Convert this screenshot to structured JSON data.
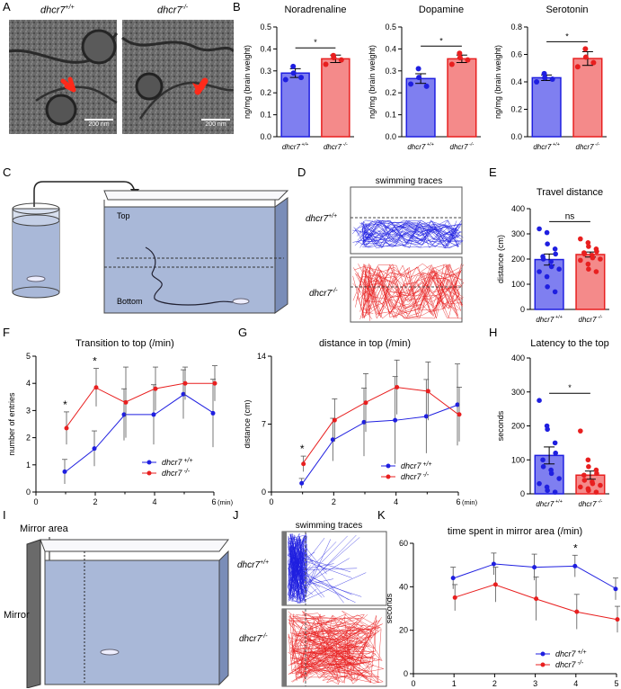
{
  "panels": [
    "A",
    "B",
    "C",
    "D",
    "E",
    "F",
    "G",
    "H",
    "I",
    "J",
    "K"
  ],
  "genotypes": {
    "wt": "dhcr7",
    "wt_sup": "+/+",
    "ko": "dhcr7",
    "ko_sup": "-/-"
  },
  "colors": {
    "wt": "#1f1fe0",
    "ko": "#e81f1f",
    "wt_fill": "#7f7ff0",
    "ko_fill": "#f48a8a"
  },
  "panel_A": {
    "scale_left": "200 nm",
    "scale_right": "200 nm"
  },
  "panel_C": {
    "top": "Top",
    "bottom": "Bottom"
  },
  "panel_D": {
    "title": "swimming traces"
  },
  "panel_I": {
    "mirror_area": "Mirror area",
    "mirror": "Mirror"
  },
  "panel_J": {
    "title": "swimming traces"
  },
  "chart_data": [
    {
      "panel": "B",
      "type": "bar",
      "title": "Noradrenaline",
      "ylabel": "ng/mg (brain weight)",
      "ylim": [
        0,
        0.5
      ],
      "yticks": [
        0.0,
        0.1,
        0.2,
        0.3,
        0.4,
        0.5
      ],
      "categories": [
        "dhcr7 +/+",
        "dhcr7 -/-"
      ],
      "values": [
        0.29,
        0.355
      ],
      "errors": [
        0.02,
        0.017
      ],
      "points": [
        [
          0.26,
          0.32,
          0.29,
          0.27
        ],
        [
          0.33,
          0.37,
          0.36,
          0.35
        ]
      ],
      "significance": "*"
    },
    {
      "panel": "B",
      "type": "bar",
      "title": "Dopamine",
      "ylabel": "ng/mg (brain weight)",
      "ylim": [
        0,
        0.5
      ],
      "yticks": [
        0.0,
        0.1,
        0.2,
        0.3,
        0.4,
        0.5
      ],
      "categories": [
        "dhcr7 +/+",
        "dhcr7 -/-"
      ],
      "values": [
        0.265,
        0.355
      ],
      "errors": [
        0.022,
        0.017
      ],
      "points": [
        [
          0.24,
          0.31,
          0.27,
          0.23
        ],
        [
          0.33,
          0.38,
          0.36,
          0.35
        ]
      ],
      "significance": "*"
    },
    {
      "panel": "B",
      "type": "bar",
      "title": "Serotonin",
      "ylabel": "ng/mg (brain weight)",
      "ylim": [
        0,
        0.8
      ],
      "yticks": [
        0.0,
        0.2,
        0.4,
        0.6,
        0.8
      ],
      "categories": [
        "dhcr7 +/+",
        "dhcr7 -/-"
      ],
      "values": [
        0.43,
        0.57
      ],
      "errors": [
        0.02,
        0.05
      ],
      "points": [
        [
          0.4,
          0.46,
          0.43,
          0.42
        ],
        [
          0.51,
          0.64,
          0.58,
          0.54
        ]
      ],
      "significance": "*"
    },
    {
      "panel": "E",
      "type": "bar",
      "title": "Travel distance",
      "ylabel": "distance (cm)",
      "ylim": [
        0,
        400
      ],
      "yticks": [
        0,
        100,
        200,
        300,
        400
      ],
      "categories": [
        "dhcr7 +/+",
        "dhcr7 -/-"
      ],
      "values": [
        198,
        218
      ],
      "errors": [
        22,
        10
      ],
      "points": [
        [
          320,
          305,
          260,
          240,
          220,
          210,
          200,
          190,
          170,
          160,
          150,
          130,
          90,
          70
        ],
        [
          280,
          265,
          250,
          240,
          230,
          225,
          220,
          215,
          205,
          200,
          195,
          180,
          160,
          150
        ]
      ],
      "significance": "ns"
    },
    {
      "panel": "F",
      "type": "line",
      "title": "Transition to top (/min)",
      "ylabel": "number of entries",
      "xlabel": "(min)",
      "xlim": [
        0,
        6
      ],
      "ylim": [
        0,
        5
      ],
      "xticks": [
        0,
        2,
        4,
        6
      ],
      "yticks": [
        0,
        1,
        2,
        3,
        4,
        5
      ],
      "x": [
        1,
        2,
        3,
        4,
        5,
        6
      ],
      "series": [
        {
          "name": "dhcr7 +/+",
          "values": [
            0.75,
            1.6,
            2.85,
            2.85,
            3.6,
            2.9
          ],
          "errors": [
            0.45,
            0.65,
            0.95,
            1.1,
            0.9,
            1.25
          ]
        },
        {
          "name": "dhcr7 -/-",
          "values": [
            2.35,
            3.85,
            3.3,
            3.8,
            4.0,
            4.0
          ],
          "errors": [
            0.6,
            0.7,
            1.3,
            0.8,
            0.6,
            0.65
          ]
        }
      ],
      "annotations": [
        "*",
        "*"
      ]
    },
    {
      "panel": "G",
      "type": "line",
      "title": "distance in top (/min)",
      "ylabel": "distance (cm)",
      "xlabel": "(min)",
      "xlim": [
        0,
        6
      ],
      "ylim": [
        0,
        14
      ],
      "xticks": [
        0,
        2,
        4,
        6
      ],
      "yticks": [
        0,
        7,
        14
      ],
      "x": [
        1,
        2,
        3,
        4,
        5,
        6
      ],
      "series": [
        {
          "name": "dhcr7 +/+",
          "values": [
            0.9,
            5.4,
            7.2,
            7.4,
            7.8,
            9.0
          ],
          "errors": [
            0.5,
            2.2,
            3.5,
            4.5,
            3.8,
            4.2
          ]
        },
        {
          "name": "dhcr7 -/-",
          "values": [
            2.9,
            7.4,
            9.2,
            10.8,
            10.4,
            8.0
          ],
          "errors": [
            0.8,
            2.2,
            3.0,
            2.8,
            3.0,
            2.8
          ]
        }
      ],
      "annotations": [
        "*"
      ]
    },
    {
      "panel": "H",
      "type": "bar",
      "title": "Latency to the top",
      "ylabel": "seconds",
      "ylim": [
        0,
        400
      ],
      "yticks": [
        0,
        100,
        200,
        300,
        400
      ],
      "categories": [
        "dhcr7 +/+",
        "dhcr7 -/-"
      ],
      "values": [
        113,
        55
      ],
      "errors": [
        25,
        12
      ],
      "points": [
        [
          275,
          200,
          190,
          150,
          120,
          100,
          80,
          70,
          60,
          45,
          30,
          20,
          10,
          5
        ],
        [
          185,
          100,
          80,
          70,
          60,
          55,
          40,
          35,
          30,
          25,
          20,
          15,
          10,
          5
        ]
      ],
      "significance": "*"
    },
    {
      "panel": "K",
      "type": "line",
      "title": "time spent in mirror area (/min)",
      "ylabel": "seconds",
      "xlim": [
        0,
        5
      ],
      "ylim": [
        0,
        60
      ],
      "xticks": [
        0,
        1,
        2,
        3,
        4,
        5
      ],
      "yticks": [
        0,
        20,
        40,
        60
      ],
      "x": [
        1,
        2,
        3,
        4,
        5
      ],
      "series": [
        {
          "name": "dhcr7 +/+",
          "values": [
            44,
            50.5,
            49,
            49.5,
            39
          ],
          "errors": [
            5,
            5,
            6,
            5,
            5
          ]
        },
        {
          "name": "dhcr7 -/-",
          "values": [
            35,
            41,
            34.5,
            28.5,
            25
          ],
          "errors": [
            6,
            8,
            10,
            8,
            6
          ]
        }
      ],
      "annotations": [
        "*"
      ]
    }
  ]
}
